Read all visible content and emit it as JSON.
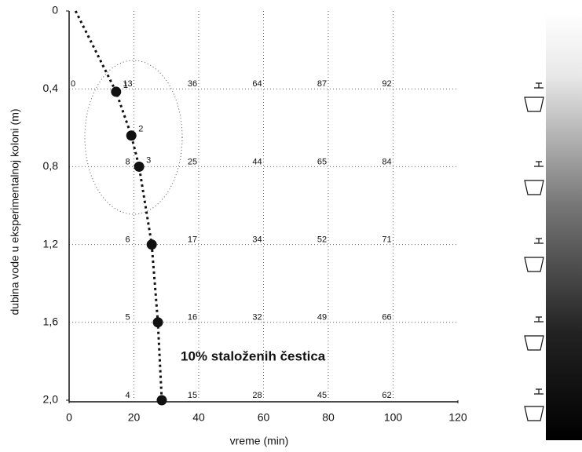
{
  "chart_data": {
    "type": "line",
    "x_label": "vreme (min)",
    "y_label": "dubina vode u eksperimentalnoj koloni (m)",
    "annotation": "10% staloženih čestica",
    "xlim": [
      0,
      120
    ],
    "xticks": [
      0,
      20,
      40,
      60,
      80,
      100,
      120
    ],
    "ylim": [
      0,
      2.0
    ],
    "y_inverted": true,
    "yticks": [
      0,
      {
        "value": 0.4,
        "label": "0,4"
      },
      {
        "value": 0.8,
        "label": "0,8"
      },
      {
        "value": 1.2,
        "label": "1,2"
      },
      {
        "value": 1.6,
        "label": "1,6"
      },
      {
        "value": 2.0,
        "label": "2,0"
      }
    ],
    "grid": true,
    "series": [
      {
        "color": "#111111",
        "style": "dotted",
        "x": [
          2,
          14.5,
          19.2,
          21.6,
          25.5,
          27.4,
          28.6
        ],
        "values": [
          0,
          0.415,
          0.64,
          0.8,
          1.2,
          1.6,
          2.0
        ]
      },
      {
        "color": "#111111",
        "style": "markers",
        "x": [
          14.5,
          19.2,
          21.6,
          25.5,
          27.4,
          28.6
        ],
        "values": [
          0.415,
          0.64,
          0.8,
          1.2,
          1.6,
          2.0
        ],
        "labels": [
          "1",
          "2",
          "3",
          null,
          null,
          null
        ]
      }
    ],
    "grid_values": {
      "x": [
        0,
        20,
        40,
        60,
        80,
        100
      ],
      "rows": [
        {
          "y": 0.4,
          "values": [
            0,
            13,
            36,
            64,
            87,
            92
          ]
        },
        {
          "y": 0.8,
          "values": [
            null,
            8,
            25,
            44,
            65,
            84
          ]
        },
        {
          "y": 1.2,
          "values": [
            null,
            6,
            17,
            34,
            52,
            71
          ]
        },
        {
          "y": 1.6,
          "values": [
            null,
            5,
            16,
            32,
            49,
            66
          ]
        },
        {
          "y": 2.0,
          "values": [
            null,
            4,
            15,
            28,
            45,
            62
          ]
        }
      ]
    }
  }
}
